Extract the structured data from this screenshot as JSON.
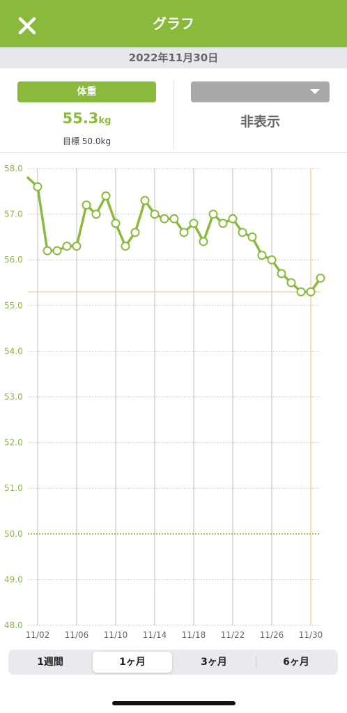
{
  "header": {
    "title": "グラフ",
    "close_icon": "close-icon"
  },
  "date_bar": "2022年11月30日",
  "left_panel": {
    "button_label": "体重",
    "value": "55.3",
    "unit": "kg",
    "goal": "目標 50.0kg"
  },
  "right_panel": {
    "dropdown_label": "",
    "dropdown_icon": "triangle-down-icon",
    "text": "非表示"
  },
  "colors": {
    "accent": "#8aba3c",
    "target_line": "#f5c68d",
    "goal_line": "#7fa83a"
  },
  "chart_data": {
    "type": "line",
    "title": "",
    "xlabel": "",
    "ylabel": "",
    "ylim": [
      48.0,
      58.0
    ],
    "y_ticks": [
      "58.0",
      "57.0",
      "56.0",
      "55.0",
      "54.0",
      "53.0",
      "52.0",
      "51.0",
      "50.0",
      "49.0",
      "48.0"
    ],
    "x_ticks": [
      "11/02",
      "11/06",
      "11/10",
      "11/14",
      "11/18",
      "11/22",
      "11/26",
      "11/30"
    ],
    "x_tick_days": [
      2,
      6,
      10,
      14,
      18,
      22,
      26,
      30
    ],
    "xlim_days": [
      1,
      31
    ],
    "goal": 50.0,
    "current": 55.3,
    "current_day": 30,
    "grid": true,
    "series": [
      {
        "x": [
          1,
          2,
          3,
          4,
          5,
          6,
          7,
          8,
          9,
          10,
          11,
          12,
          13,
          14,
          15,
          16,
          17,
          18,
          19,
          20,
          21,
          22,
          23,
          24,
          25,
          26,
          27,
          28,
          29,
          30,
          31
        ],
        "values": [
          57.8,
          57.6,
          56.2,
          56.2,
          56.3,
          56.3,
          57.2,
          57.0,
          57.4,
          56.8,
          56.3,
          56.6,
          57.3,
          57.0,
          56.9,
          56.9,
          56.6,
          56.8,
          56.4,
          57.0,
          56.8,
          56.9,
          56.6,
          56.5,
          56.1,
          56.0,
          55.7,
          55.5,
          55.3,
          55.3,
          55.6
        ]
      }
    ]
  },
  "segments": [
    "1週間",
    "1ヶ月",
    "3ヶ月",
    "6ヶ月"
  ],
  "selected_segment": "1ヶ月"
}
